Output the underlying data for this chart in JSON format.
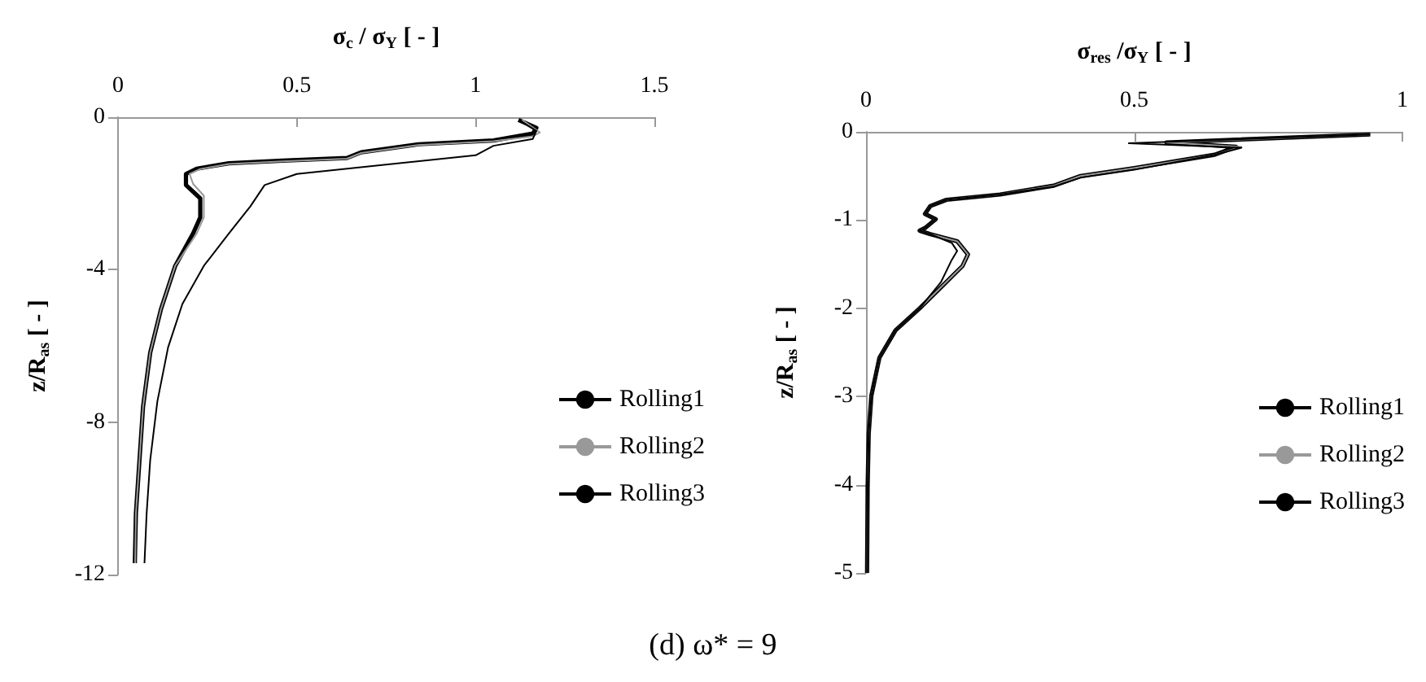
{
  "chart_data": [
    {
      "type": "line",
      "xlabel": "σ$_{c}$ / σ$_{Y}$ [ - ]",
      "ylabel": "z/R$_{as}$ [ - ]",
      "xlim": [
        0,
        1.5
      ],
      "xticks": [
        0,
        0.5,
        1,
        1.5
      ],
      "ylim": [
        -12,
        0
      ],
      "yticks": [
        -12,
        -8,
        -4,
        0
      ],
      "grid": false,
      "legend": "bottom right",
      "marker": "none",
      "line_style": "solid",
      "series": [
        {
          "name": "Rolling1",
          "color": "#000000",
          "x": [
            1.12,
            1.17,
            1.16,
            1.05,
            1.0,
            0.5,
            0.41,
            0.37,
            0.31,
            0.24,
            0.18,
            0.14,
            0.11,
            0.09,
            0.08,
            0.074
          ],
          "values": [
            -0.07,
            -0.36,
            -0.57,
            -0.75,
            -1.0,
            -1.49,
            -1.78,
            -2.34,
            -3.05,
            -3.9,
            -4.9,
            -6.04,
            -7.46,
            -9.0,
            -10.4,
            -11.7
          ]
        },
        {
          "name": "Rolling2",
          "color": "#999999",
          "x": [
            1.13,
            1.18,
            1.16,
            1.05,
            0.84,
            0.68,
            0.64,
            0.46,
            0.31,
            0.23,
            0.2,
            0.21,
            0.24,
            0.24,
            0.22,
            0.16,
            0.12,
            0.09,
            0.07,
            0.06,
            0.05,
            0.048
          ],
          "values": [
            -0.07,
            -0.4,
            -0.5,
            -0.63,
            -0.73,
            -0.94,
            -1.09,
            -1.16,
            -1.23,
            -1.36,
            -1.49,
            -1.75,
            -2.06,
            -2.63,
            -3.05,
            -3.9,
            -5.04,
            -6.18,
            -7.6,
            -9.0,
            -10.4,
            -11.7
          ]
        },
        {
          "name": "Rolling3",
          "color": "#000000",
          "x": [
            1.12,
            1.17,
            1.16,
            1.05,
            0.84,
            0.68,
            0.64,
            0.46,
            0.31,
            0.22,
            0.19,
            0.19,
            0.23,
            0.23,
            0.21,
            0.16,
            0.12,
            0.09,
            0.07,
            0.06,
            0.05,
            0.047
          ],
          "values": [
            -0.07,
            -0.28,
            -0.43,
            -0.61,
            -0.71,
            -0.92,
            -1.07,
            -1.14,
            -1.21,
            -1.35,
            -1.49,
            -1.78,
            -2.13,
            -2.63,
            -3.05,
            -3.9,
            -5.04,
            -6.18,
            -7.6,
            -9.0,
            -10.4,
            -11.7
          ]
        }
      ]
    },
    {
      "type": "line",
      "xlabel": "σ$_{res}$ /σ$_{Y}$ [ - ]",
      "ylabel": "z/R$_{as}$ [ - ]",
      "xlim": [
        0,
        1
      ],
      "xticks": [
        0,
        0.5,
        1
      ],
      "ylim": [
        -5,
        0
      ],
      "yticks": [
        -5,
        -4,
        -3,
        -2,
        -1,
        0
      ],
      "grid": false,
      "legend": "bottom right",
      "marker": "none",
      "line_style": "solid",
      "annotations": [
        "(d) ω* = 9"
      ],
      "series": [
        {
          "name": "Rolling1",
          "color": "#000000",
          "x": [
            0.94,
            0.49,
            0.7,
            0.65,
            0.5,
            0.4,
            0.35,
            0.25,
            0.15,
            0.12,
            0.11,
            0.13,
            0.11,
            0.1,
            0.12,
            0.16,
            0.17,
            0.16,
            0.14,
            0.1,
            0.055,
            0.025,
            0.01,
            0.005,
            0.003,
            0.002
          ],
          "values": [
            -0.03,
            -0.13,
            -0.18,
            -0.26,
            -0.43,
            -0.52,
            -0.62,
            -0.71,
            -0.77,
            -0.84,
            -0.93,
            -0.99,
            -1.09,
            -1.12,
            -1.16,
            -1.26,
            -1.35,
            -1.45,
            -1.7,
            -2.0,
            -2.25,
            -2.56,
            -2.99,
            -3.42,
            -4.03,
            -5
          ]
        },
        {
          "name": "Rolling2",
          "color": "#999999",
          "x": [
            0.94,
            0.56,
            0.7,
            0.65,
            0.5,
            0.4,
            0.35,
            0.25,
            0.15,
            0.12,
            0.11,
            0.13,
            0.11,
            0.1,
            0.12,
            0.17,
            0.19,
            0.18,
            0.14,
            0.1,
            0.055,
            0.025,
            0.01,
            0.005,
            0.003,
            0.002
          ],
          "values": [
            -0.03,
            -0.12,
            -0.17,
            -0.26,
            -0.41,
            -0.5,
            -0.61,
            -0.71,
            -0.77,
            -0.84,
            -0.93,
            -0.99,
            -1.09,
            -1.12,
            -1.16,
            -1.24,
            -1.39,
            -1.52,
            -1.76,
            -2.0,
            -2.25,
            -2.56,
            -2.99,
            -3.42,
            -4.03,
            -5
          ]
        },
        {
          "name": "Rolling3",
          "color": "#000000",
          "x": [
            0.94,
            0.56,
            0.69,
            0.65,
            0.5,
            0.4,
            0.35,
            0.25,
            0.15,
            0.12,
            0.11,
            0.13,
            0.11,
            0.1,
            0.12,
            0.17,
            0.19,
            0.18,
            0.14,
            0.1,
            0.055,
            0.025,
            0.01,
            0.005,
            0.003,
            0.002
          ],
          "values": [
            -0.03,
            -0.12,
            -0.17,
            -0.26,
            -0.41,
            -0.5,
            -0.61,
            -0.71,
            -0.77,
            -0.84,
            -0.93,
            -0.99,
            -1.09,
            -1.12,
            -1.16,
            -1.24,
            -1.39,
            -1.52,
            -1.76,
            -2.0,
            -2.25,
            -2.56,
            -2.99,
            -3.42,
            -4.03,
            -5
          ]
        }
      ]
    }
  ]
}
